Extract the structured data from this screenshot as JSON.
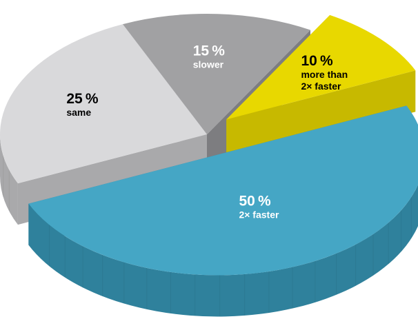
{
  "chart_data": {
    "type": "pie",
    "style": "3d-exploded",
    "slices": [
      {
        "value": 10,
        "label": "10 %",
        "desc": [
          "more than",
          "2× faster"
        ],
        "color": "#e8d800",
        "side": "#c7b900",
        "text_color": "#000000",
        "explode": 1
      },
      {
        "value": 50,
        "label": "50 %",
        "desc": [
          "2× faster"
        ],
        "color": "#45a6c5",
        "side": "#2f819c",
        "text_color": "#ffffff",
        "explode": 1
      },
      {
        "value": 25,
        "label": "25 %",
        "desc": [
          "same"
        ],
        "color": "#d9d9db",
        "side": "#a9a9ab",
        "text_color": "#000000",
        "explode": 0
      },
      {
        "value": 15,
        "label": "15 %",
        "desc": [
          "slower"
        ],
        "color": "#a1a1a3",
        "side": "#7d7d80",
        "text_color": "#ffffff",
        "explode": 0
      }
    ]
  }
}
